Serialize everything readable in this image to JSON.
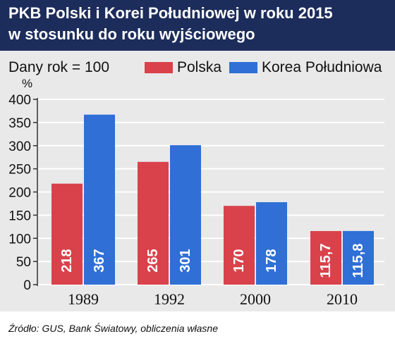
{
  "title": {
    "line1": "PKB Polski i Korei Południowej w roku 2015",
    "line2": "w stosunku do roku wyjściowego"
  },
  "subtitle": "Dany rok = 100",
  "source": "Źródło: GUS, Bank Światowy, obliczenia własne",
  "colors": {
    "header": "#1c2c5b",
    "polska": "#d9424b",
    "korea": "#2f6fd6",
    "plot_background": "#e9e9e9"
  },
  "chart_data": {
    "type": "bar",
    "title": "PKB Polski i Korei Południowej w roku 2015 w stosunku do roku wyjściowego",
    "subtitle": "Dany rok = 100",
    "xlabel": "",
    "ylabel": "%",
    "ylim": [
      0,
      400
    ],
    "yticks": [
      0,
      50,
      100,
      150,
      200,
      250,
      300,
      350,
      400
    ],
    "grid": true,
    "legend_position": "top-right",
    "categories": [
      "1989",
      "1992",
      "2000",
      "2010"
    ],
    "series": [
      {
        "name": "Polska",
        "values": [
          218,
          265,
          170,
          115.7
        ],
        "labels": [
          "218",
          "265",
          "170",
          "115,7"
        ],
        "color": "#d9424b"
      },
      {
        "name": "Korea Południowa",
        "values": [
          367,
          301,
          178,
          115.8
        ],
        "labels": [
          "367",
          "301",
          "178",
          "115,8"
        ],
        "color": "#2f6fd6"
      }
    ]
  }
}
